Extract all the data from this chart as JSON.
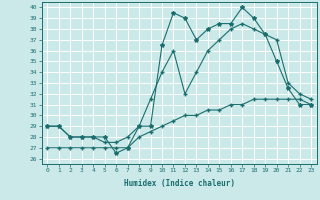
{
  "xlabel": "Humidex (Indice chaleur)",
  "bg_color": "#cce9e9",
  "line_color": "#1a6e6e",
  "grid_color": "#ffffff",
  "xlim": [
    -0.5,
    23.5
  ],
  "ylim": [
    25.5,
    40.5
  ],
  "yticks": [
    26,
    27,
    28,
    29,
    30,
    31,
    32,
    33,
    34,
    35,
    36,
    37,
    38,
    39,
    40
  ],
  "xticks": [
    0,
    1,
    2,
    3,
    4,
    5,
    6,
    7,
    8,
    9,
    10,
    11,
    12,
    13,
    14,
    15,
    16,
    17,
    18,
    19,
    20,
    21,
    22,
    23
  ],
  "series1_x": [
    0,
    1,
    2,
    3,
    4,
    5,
    6,
    7,
    8,
    9,
    10,
    11,
    12,
    13,
    14,
    15,
    16,
    17,
    18,
    19,
    20,
    21,
    22,
    23
  ],
  "series1_y": [
    29,
    29,
    28,
    28,
    28,
    28,
    26.5,
    27,
    29,
    29,
    36.5,
    39.5,
    39,
    37,
    38,
    38.5,
    38.5,
    40,
    39,
    37.5,
    35,
    32.5,
    31,
    31
  ],
  "series2_x": [
    0,
    1,
    2,
    3,
    4,
    5,
    6,
    7,
    8,
    9,
    10,
    11,
    12,
    13,
    14,
    15,
    16,
    17,
    18,
    19,
    20,
    21,
    22,
    23
  ],
  "series2_y": [
    29,
    29,
    28,
    28,
    28,
    27.5,
    27.5,
    28,
    29,
    31.5,
    34,
    36,
    32,
    34,
    36,
    37,
    38,
    38.5,
    38,
    37.5,
    37,
    33,
    32,
    31.5
  ],
  "series3_x": [
    0,
    1,
    2,
    3,
    4,
    5,
    6,
    7,
    8,
    9,
    10,
    11,
    12,
    13,
    14,
    15,
    16,
    17,
    18,
    19,
    20,
    21,
    22,
    23
  ],
  "series3_y": [
    27,
    27,
    27,
    27,
    27,
    27,
    27,
    27,
    28,
    28.5,
    29,
    29.5,
    30,
    30,
    30.5,
    30.5,
    31,
    31,
    31.5,
    31.5,
    31.5,
    31.5,
    31.5,
    31
  ]
}
